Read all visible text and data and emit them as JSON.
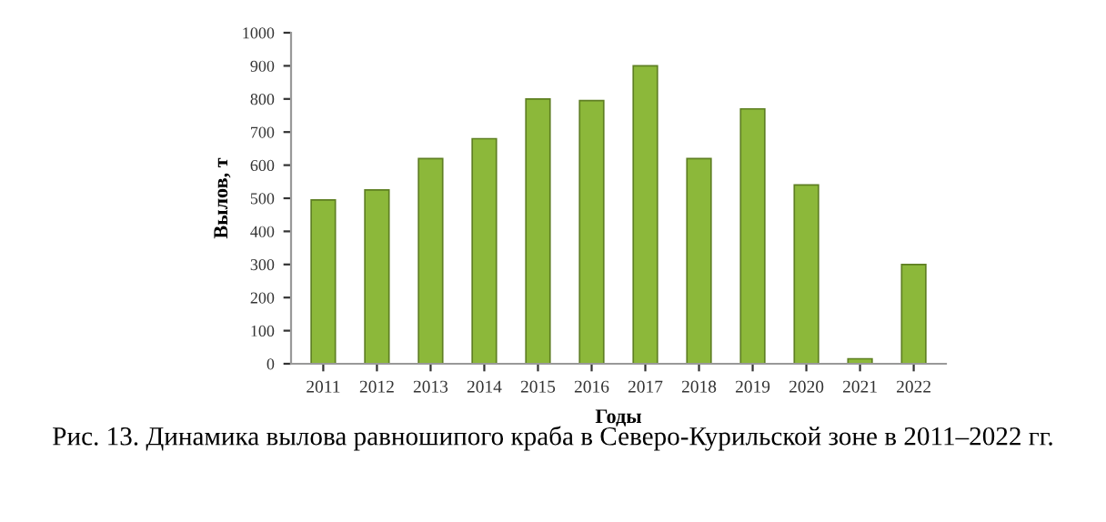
{
  "chart_data": {
    "type": "bar",
    "xlabel": "Годы",
    "ylabel": "Вылов, т",
    "categories": [
      "2011",
      "2012",
      "2013",
      "2014",
      "2015",
      "2016",
      "2017",
      "2018",
      "2019",
      "2020",
      "2021",
      "2022"
    ],
    "values": [
      495,
      525,
      620,
      680,
      800,
      795,
      900,
      620,
      770,
      540,
      15,
      300
    ],
    "color": "#8cb83a",
    "ylim": [
      0,
      1000
    ],
    "yticks": [
      0,
      100,
      200,
      300,
      400,
      500,
      600,
      700,
      800,
      900,
      1000
    ],
    "grid": false,
    "legend": false,
    "annotations": [
      "Рис. 13. Динамика вылова равношипого краба в Северо-Курильской зоне в 2011–2022 гг."
    ]
  }
}
